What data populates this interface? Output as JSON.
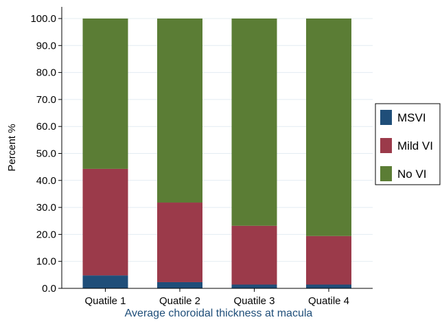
{
  "chart_data": {
    "type": "bar",
    "stacked": true,
    "categories": [
      "Quatile 1",
      "Quatile 2",
      "Quatile 3",
      "Quatile 4"
    ],
    "series": [
      {
        "name": "MSVI",
        "values": [
          4.8,
          2.3,
          1.4,
          1.4
        ],
        "color": "#1f4e79"
      },
      {
        "name": "Mild VI",
        "values": [
          39.5,
          29.5,
          21.8,
          18.0
        ],
        "color": "#9b3a4a"
      },
      {
        "name": "No VI",
        "values": [
          55.7,
          68.2,
          76.8,
          80.6
        ],
        "color": "#5b7d35"
      }
    ],
    "title": "",
    "xlabel": "Average choroidal thickness at macula",
    "ylabel": "Percent %",
    "ylim": [
      0,
      100
    ],
    "yticks": [
      "0.0",
      "10.0",
      "20.0",
      "30.0",
      "40.0",
      "50.0",
      "60.0",
      "70.0",
      "80.0",
      "90.0",
      "100.0"
    ],
    "grid": true,
    "legend_position": "right",
    "xlabel_color": "#1f4e79",
    "grid_color": "#e3ecf2"
  }
}
